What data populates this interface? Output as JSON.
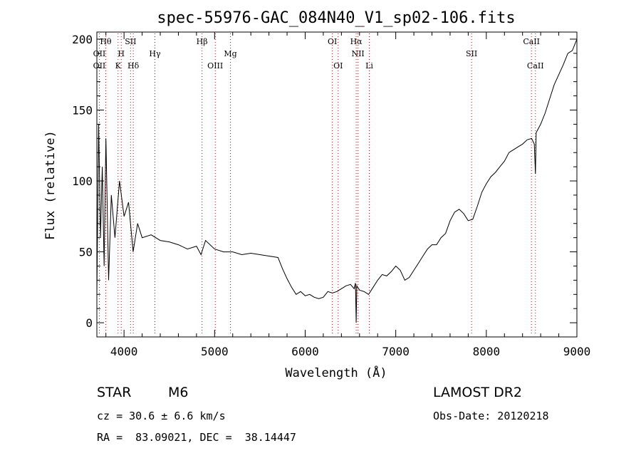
{
  "chart_data": {
    "type": "line",
    "title": "spec-55976-GAC_084N40_V1_sp02-106.fits",
    "xlabel": "Wavelength (Å)",
    "ylabel": "Flux (relative)",
    "xlim": [
      3700,
      9000
    ],
    "ylim": [
      -10,
      205
    ],
    "xticks": [
      4000,
      5000,
      6000,
      7000,
      8000,
      9000
    ],
    "yticks": [
      0,
      50,
      100,
      150,
      200
    ],
    "grid": false,
    "series": [
      {
        "x": [
          3700,
          3720,
          3740,
          3760,
          3780,
          3800,
          3830,
          3860,
          3900,
          3950,
          4000,
          4050,
          4100,
          4150,
          4200,
          4300,
          4400,
          4500,
          4600,
          4700,
          4800,
          4850,
          4900,
          5000,
          5100,
          5200,
          5300,
          5400,
          5500,
          5600,
          5700,
          5750,
          5800,
          5850,
          5900,
          5950,
          6000,
          6050,
          6100,
          6150,
          6200,
          6250,
          6300,
          6350,
          6400,
          6450,
          6500,
          6540,
          6555,
          6563,
          6570,
          6600,
          6650,
          6700,
          6750,
          6800,
          6850,
          6900,
          6950,
          7000,
          7050,
          7100,
          7150,
          7200,
          7250,
          7300,
          7350,
          7400,
          7450,
          7500,
          7550,
          7600,
          7650,
          7700,
          7750,
          7800,
          7850,
          7900,
          7950,
          8000,
          8050,
          8100,
          8150,
          8200,
          8250,
          8300,
          8350,
          8400,
          8450,
          8500,
          8530,
          8542,
          8550,
          8600,
          8650,
          8700,
          8750,
          8800,
          8850,
          8900,
          8950,
          9000
        ],
        "y": [
          20,
          140,
          60,
          110,
          40,
          130,
          30,
          90,
          60,
          100,
          75,
          85,
          50,
          70,
          60,
          62,
          58,
          57,
          55,
          52,
          54,
          48,
          58,
          52,
          50,
          50,
          48,
          49,
          48,
          47,
          46,
          38,
          31,
          25,
          20,
          22,
          19,
          20,
          18,
          17,
          18,
          22,
          21,
          22,
          24,
          26,
          27,
          24,
          28,
          0,
          26,
          23,
          22,
          20,
          25,
          30,
          34,
          33,
          36,
          40,
          37,
          30,
          32,
          37,
          42,
          47,
          52,
          55,
          55,
          60,
          63,
          72,
          78,
          80,
          77,
          72,
          73,
          82,
          92,
          98,
          103,
          106,
          110,
          114,
          120,
          122,
          124,
          126,
          129,
          130,
          126,
          105,
          134,
          140,
          148,
          158,
          168,
          175,
          182,
          190,
          192,
          200
        ]
      }
    ],
    "spectral_lines": [
      {
        "label": "Hθ",
        "wl": 3798,
        "row": 1
      },
      {
        "label": "OII",
        "wl": 3727,
        "row": 2
      },
      {
        "label": "OII",
        "wl": 3727,
        "row": 3
      },
      {
        "label": "H",
        "wl": 3969,
        "row": 2
      },
      {
        "label": "K",
        "wl": 3934,
        "row": 3
      },
      {
        "label": "SII",
        "wl": 4072,
        "row": 1
      },
      {
        "label": "Hδ",
        "wl": 4102,
        "row": 3
      },
      {
        "label": "Hγ",
        "wl": 4341,
        "row": 2
      },
      {
        "label": "Hβ",
        "wl": 4861,
        "row": 1
      },
      {
        "label": "OIII",
        "wl": 5007,
        "row": 3
      },
      {
        "label": "Mg",
        "wl": 5175,
        "row": 2
      },
      {
        "label": "OI",
        "wl": 6300,
        "row": 1
      },
      {
        "label": "OI",
        "wl": 6364,
        "row": 3
      },
      {
        "label": "Hα",
        "wl": 6563,
        "row": 1
      },
      {
        "label": "NII",
        "wl": 6583,
        "row": 2
      },
      {
        "label": "Li",
        "wl": 6708,
        "row": 3
      },
      {
        "label": "SII",
        "wl": 7837,
        "row": 2
      },
      {
        "label": "CaII",
        "wl": 8498,
        "row": 1
      },
      {
        "label": "CaII",
        "wl": 8542,
        "row": 3
      }
    ]
  },
  "info": {
    "object_class": "STAR",
    "subclass": "M6",
    "survey": "LAMOST DR2",
    "redshift_text": "cz = 30.6 ± 6.6 km/s",
    "obs_date": "Obs-Date: 20120218",
    "coords": "RA =  83.09021, DEC =  38.14447"
  },
  "colors": {
    "line": "#000000",
    "marker": "#cc0000"
  }
}
